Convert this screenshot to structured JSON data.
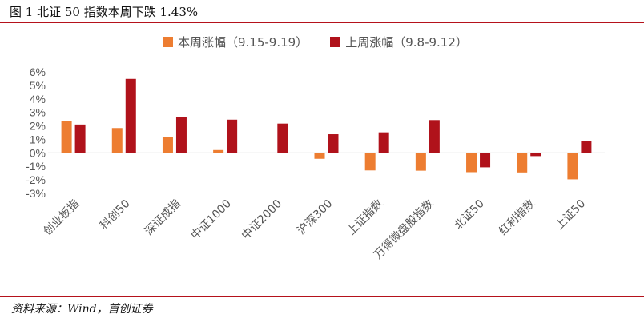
{
  "figure": {
    "title": "图 1 北证 50 指数本周下跌 1.43%",
    "source": "资料来源：Wind，首创证券"
  },
  "colors": {
    "series_this_week": "#ed7d31",
    "series_last_week": "#b0121b",
    "rule": "#b5121b"
  },
  "chart_data": {
    "type": "bar",
    "categories": [
      "创业板指",
      "科创50",
      "深证成指",
      "中证1000",
      "中证2000",
      "沪深300",
      "上证指数",
      "万得微盘股指数",
      "北证50",
      "红利指数",
      "上证50"
    ],
    "series": [
      {
        "name": "本周涨幅（9.15-9.19）",
        "values": [
          2.34,
          1.84,
          1.16,
          0.21,
          0.0,
          -0.44,
          -1.3,
          -1.32,
          -1.43,
          -1.45,
          -1.96
        ]
      },
      {
        "name": "上周涨幅（9.8-9.12）",
        "values": [
          2.1,
          5.48,
          2.65,
          2.46,
          2.17,
          1.38,
          1.52,
          2.43,
          -1.07,
          -0.24,
          0.89
        ]
      }
    ],
    "yticks": [
      "6%",
      "5%",
      "4%",
      "3%",
      "2%",
      "1%",
      "0%",
      "-1%",
      "-2%",
      "-3%"
    ],
    "ylim": [
      -3,
      6
    ],
    "grid": false,
    "legend_position": "top-center"
  }
}
